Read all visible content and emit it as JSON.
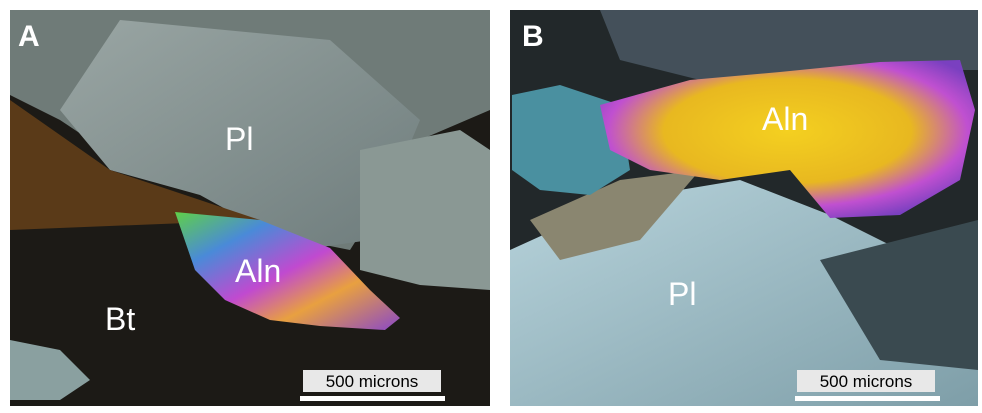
{
  "panels": [
    {
      "label": "A",
      "minerals": [
        "Pl",
        "Aln",
        "Bt"
      ],
      "scale_bar": "500 microns"
    },
    {
      "label": "B",
      "minerals": [
        "Aln",
        "Pl"
      ],
      "scale_bar": "500 microns"
    }
  ]
}
